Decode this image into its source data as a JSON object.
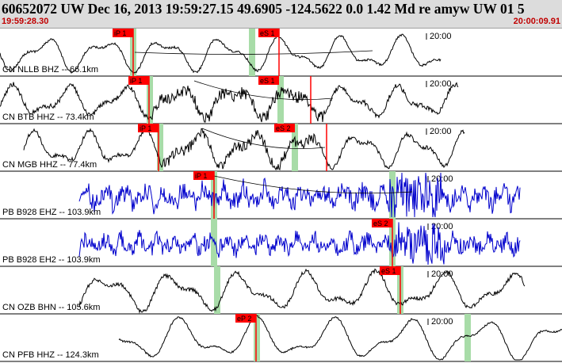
{
  "header": {
    "title": "60652072 UW Dec 16, 2013 19:59:27.15    49.6905 -124.5622  0.0 1.42 Md re amyw UW 01    5",
    "start_time": "19:59:28.30",
    "end_time": "20:00:09.91"
  },
  "colors": {
    "trace_black": "#000000",
    "trace_blue": "#0000cc",
    "pick": "#ff0000",
    "window": "#a8dca8"
  },
  "tick_label": "20:00",
  "channels": [
    {
      "label": "CN NLLB BHZ -- 66.1km",
      "color": "trace_black",
      "picks": [
        {
          "label": "iP 1"
        },
        {
          "label": "eS 1"
        }
      ]
    },
    {
      "label": "CN BTB HHZ -- 73.4km",
      "color": "trace_black",
      "picks": [
        {
          "label": "iP 1"
        },
        {
          "label": "eS 1"
        }
      ]
    },
    {
      "label": "CN MGB HHZ -- 77.4km",
      "color": "trace_black",
      "picks": [
        {
          "label": "iP 1"
        },
        {
          "label": "eS 2"
        }
      ]
    },
    {
      "label": "PB B928 EHZ -- 103.9km",
      "color": "trace_blue",
      "picks": [
        {
          "label": "iP 1"
        }
      ]
    },
    {
      "label": "PB B928 EH2 -- 103.9km",
      "color": "trace_blue",
      "picks": [
        {
          "label": "eS 2"
        }
      ]
    },
    {
      "label": "CN OZB BHN -- 105.6km",
      "color": "trace_black",
      "picks": [
        {
          "label": "eS 1"
        }
      ]
    },
    {
      "label": "CN PFB HHZ -- 124.3km",
      "color": "trace_black",
      "picks": [
        {
          "label": "eP 2"
        }
      ]
    }
  ]
}
